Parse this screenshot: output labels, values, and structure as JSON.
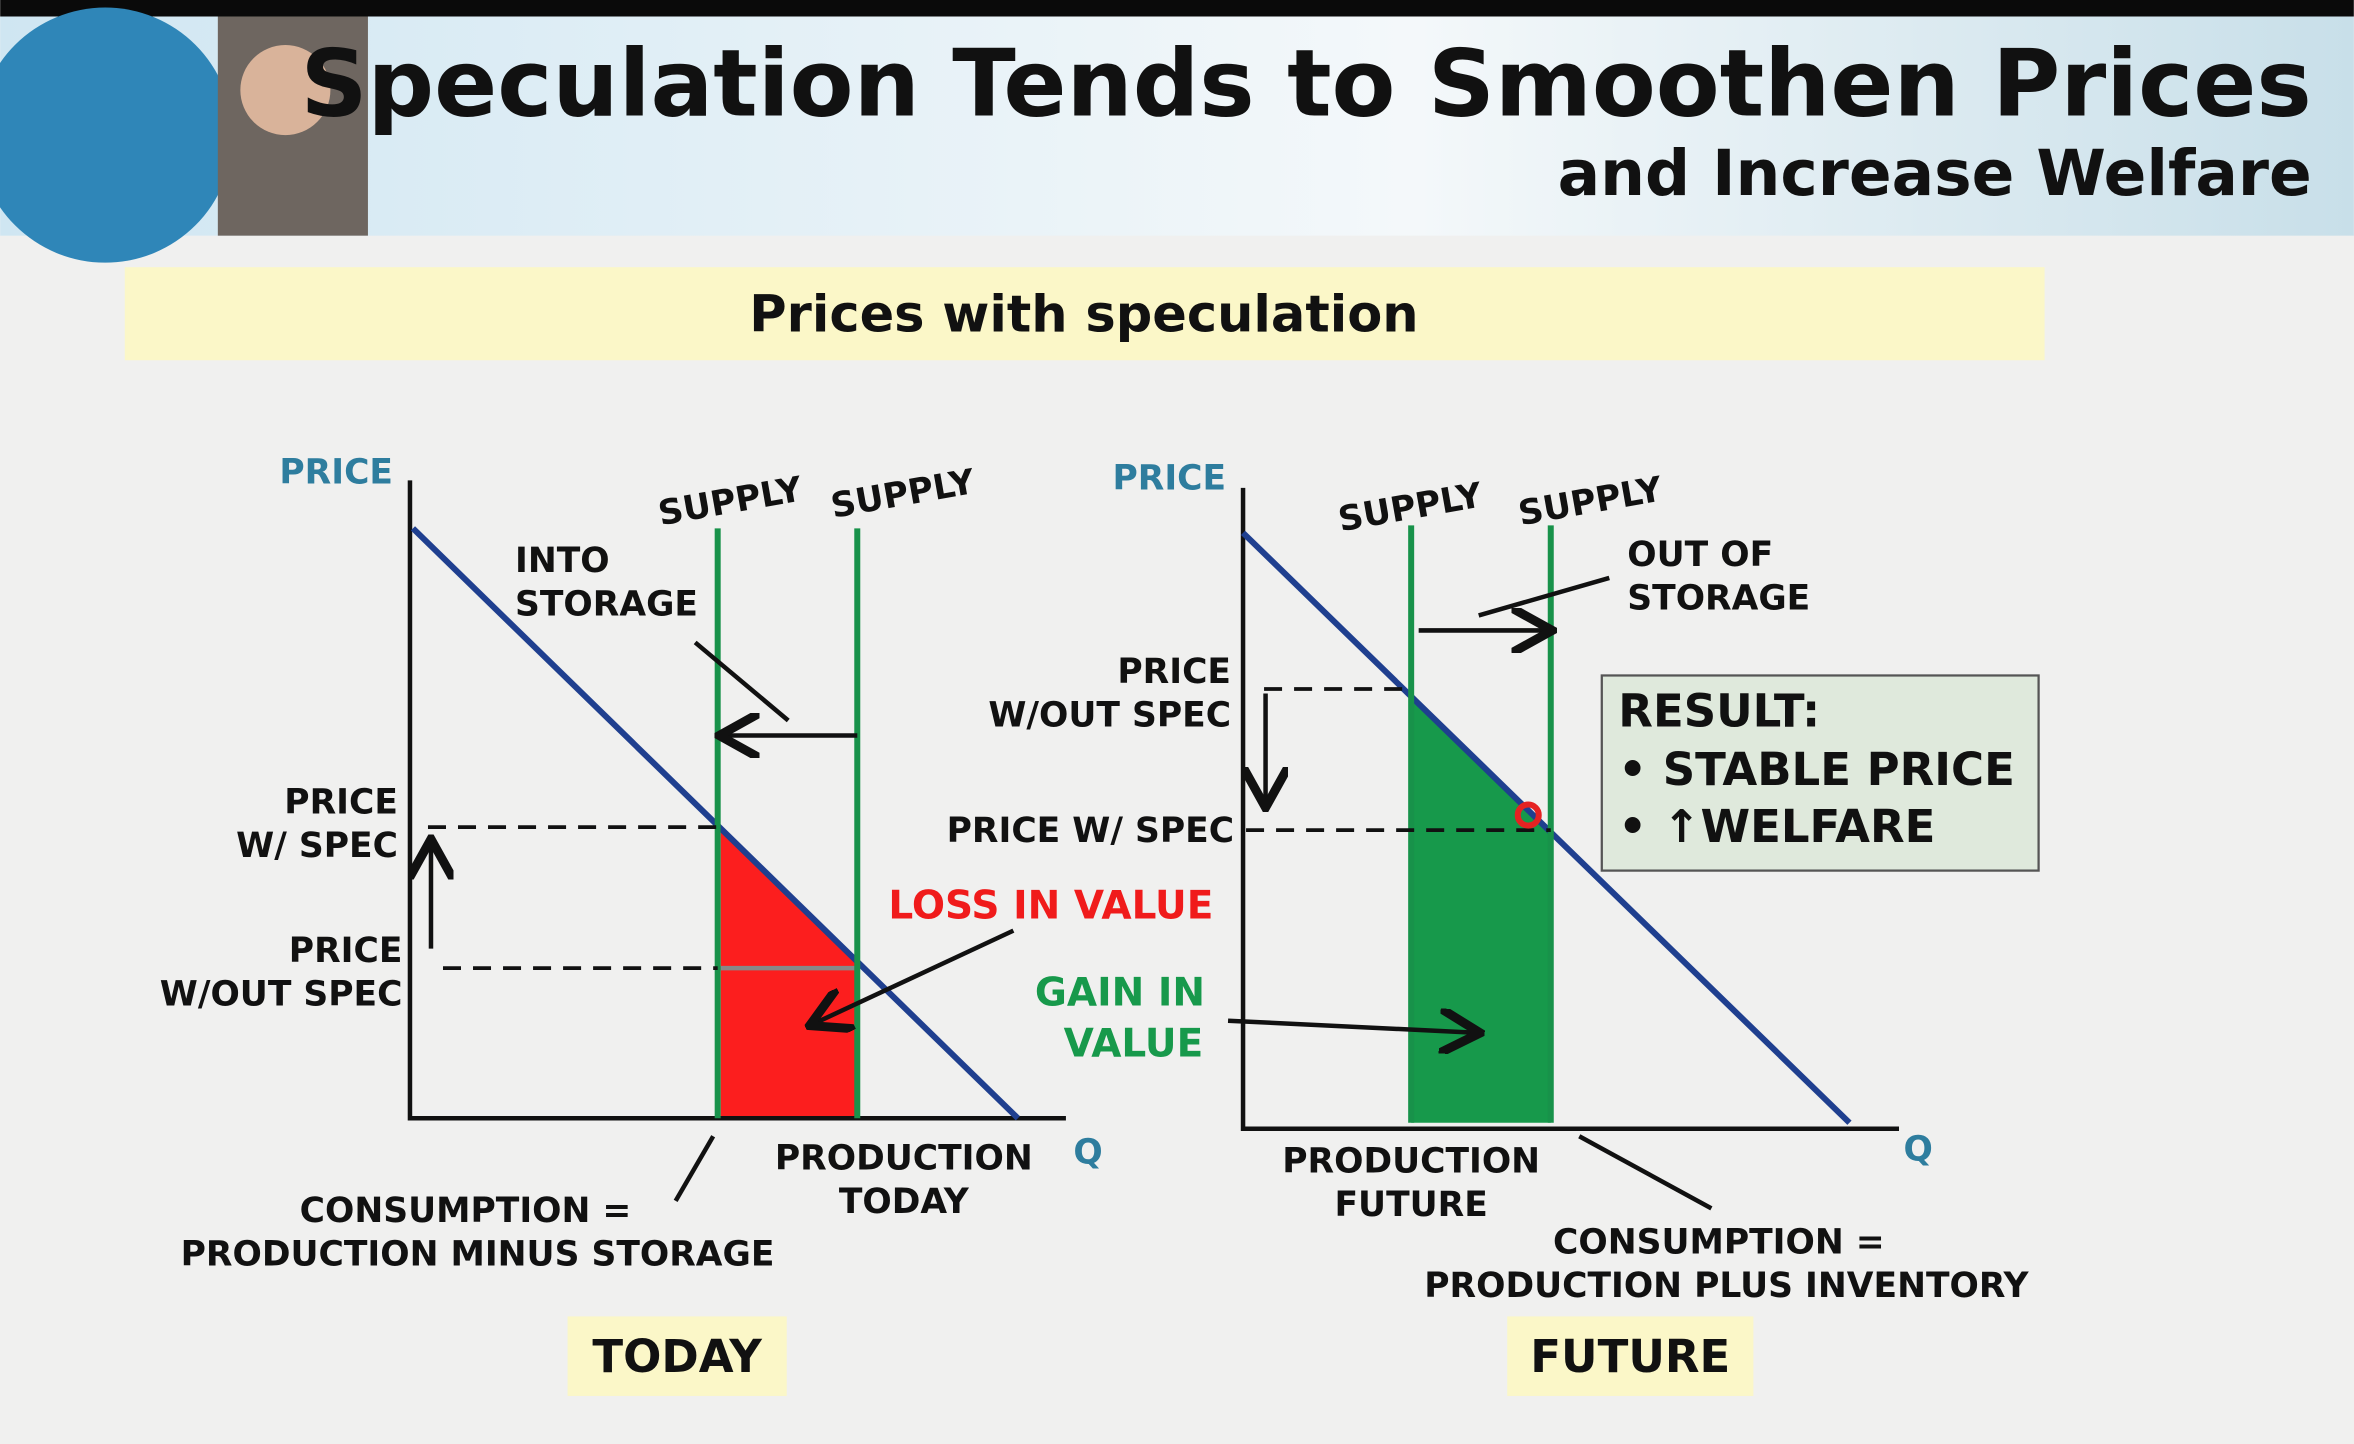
{
  "header": {
    "title": "Speculation Tends to Smoothen Prices",
    "subtitle": "and Increase Welfare"
  },
  "banner": "Prices with speculation",
  "today": {
    "y_axis": "PRICE",
    "x_axis": "Q",
    "supply_left": "SUPPLY",
    "supply_right": "SUPPLY",
    "into_storage": [
      "INTO",
      "STORAGE"
    ],
    "price_with_spec": [
      "PRICE",
      "W/ SPEC"
    ],
    "price_without_spec": [
      "PRICE",
      "W/OUT SPEC"
    ],
    "loss": "LOSS IN VALUE",
    "production": [
      "PRODUCTION",
      "TODAY"
    ],
    "consumption": [
      "CONSUMPTION =",
      "PRODUCTION MINUS STORAGE"
    ],
    "label": "TODAY"
  },
  "future": {
    "y_axis": "PRICE",
    "x_axis": "Q",
    "supply_left": "SUPPLY",
    "supply_right": "SUPPLY",
    "out_of_storage": [
      "OUT OF",
      "STORAGE"
    ],
    "price_without_spec": [
      "PRICE",
      "W/OUT SPEC"
    ],
    "price_with_spec": "PRICE W/ SPEC",
    "gain": [
      "GAIN IN",
      "VALUE"
    ],
    "production": [
      "PRODUCTION",
      "FUTURE"
    ],
    "consumption": [
      "CONSUMPTION =",
      "PRODUCTION PLUS INVENTORY"
    ],
    "result": [
      "RESULT:",
      "• STABLE PRICE",
      "• ↑WELFARE"
    ],
    "label": "FUTURE"
  }
}
